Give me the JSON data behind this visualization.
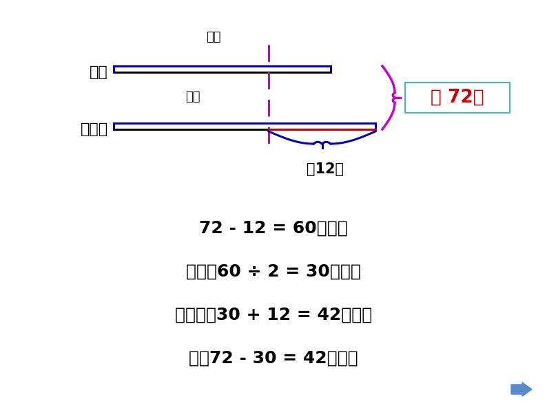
{
  "bg_color": "#ffffff",
  "tiehead_label": "铁头",
  "jiangxiaoye_label": "姜小牙",
  "question_mark1": "？朵",
  "question_mark2": "？朵",
  "duo12": "多12朵",
  "gong72": "共 72朵",
  "eq1": "72 - 12 = 60（朵）",
  "eq2": "铁头：60 ÷ 2 = 30（朵）",
  "eq3": "姜小牙：30 + 12 = 42（朵）",
  "eq4": "或：72 - 30 = 42（朵）",
  "blue_color": "#0000bb",
  "red_color": "#cc0000",
  "magenta_color": "#cc00cc",
  "black_color": "#000000",
  "teal_box_color": "#44bbaa",
  "arrow_color": "#5588cc",
  "fig_w": 7.94,
  "fig_h": 5.96,
  "dpi": 100
}
